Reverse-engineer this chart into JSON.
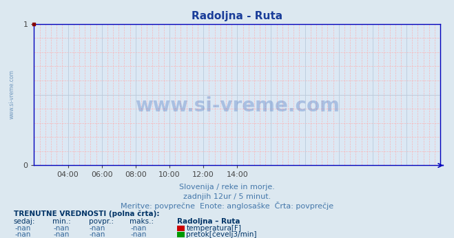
{
  "title": "Radoljna - Ruta",
  "title_color": "#1a3d99",
  "title_fontsize": 11,
  "bg_color": "#dce8f0",
  "plot_bg_color": "#dce8f4",
  "grid_color_minor": "#ffaaaa",
  "grid_color_major": "#bbccdd",
  "xlim": [
    0,
    720
  ],
  "ylim": [
    0,
    1
  ],
  "xtick_labels_show": [
    "04:00",
    "06:00",
    "08:00",
    "10:00",
    "12:00",
    "14:00"
  ],
  "xtick_positions_show": [
    60,
    120,
    180,
    240,
    300,
    360
  ],
  "watermark_text": "www.si-vreme.com",
  "watermark_color": "#3366bb",
  "watermark_alpha": 0.3,
  "sidebar_text": "www.si-vreme.com",
  "sidebar_color": "#4477aa",
  "footer_line1": "Slovenija / reke in morje.",
  "footer_line2": "zadnjih 12ur / 5 minut.",
  "footer_line3": "Meritve: povprečne  Enote: anglosaške  Črta: povprečje",
  "footer_color": "#4477aa",
  "footer_fontsize": 8,
  "legend_title": "TRENUTNE VREDNOSTI (polna črta):",
  "legend_title_color": "#003366",
  "col_headers": [
    "sedaj:",
    "min.:",
    "povpr.:",
    "maks.:",
    "Radoljna – Ruta"
  ],
  "row1": [
    "-nan",
    "-nan",
    "-nan",
    "-nan",
    "temperatura[F]"
  ],
  "row2": [
    "-nan",
    "-nan",
    "-nan",
    "-nan",
    "pretok[čevelj3/min]"
  ],
  "temp_color": "#cc0000",
  "flow_color": "#009900",
  "spine_color": "#0000bb",
  "tick_color": "#444444"
}
